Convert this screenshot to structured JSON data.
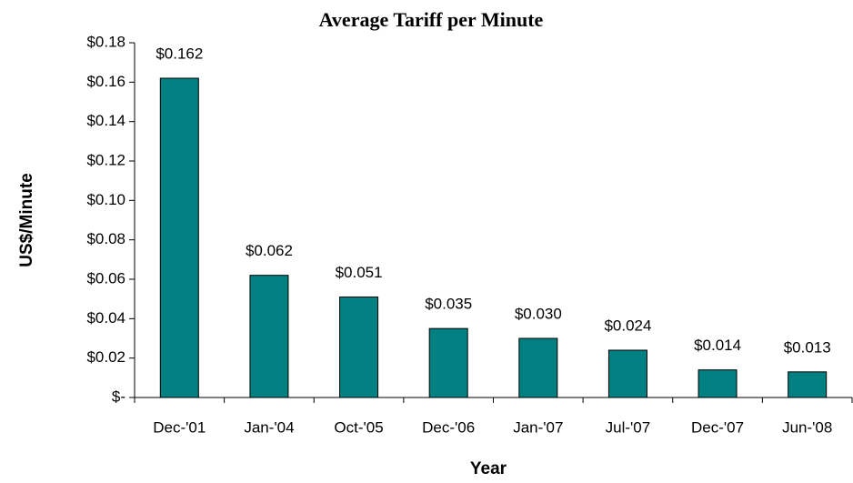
{
  "chart_data": {
    "type": "bar",
    "title": "Average Tariff per Minute",
    "x_label": "Year",
    "y_label": "US$/Minute",
    "categories": [
      "Dec-'01",
      "Jan-'04",
      "Oct-'05",
      "Dec-'06",
      "Jan-'07",
      "Jul-'07",
      "Dec-'07",
      "Jun-'08"
    ],
    "values": [
      0.162,
      0.062,
      0.051,
      0.035,
      0.03,
      0.024,
      0.014,
      0.013
    ],
    "value_labels": [
      "$0.162",
      "$0.062",
      "$0.051",
      "$0.035",
      "$0.030",
      "$0.024",
      "$0.014",
      "$0.013"
    ],
    "color": "#008080",
    "ylim": [
      0,
      0.18
    ],
    "yticks": [
      {
        "value": 0,
        "label": "$-"
      },
      {
        "value": 0.02,
        "label": "$0.02"
      },
      {
        "value": 0.04,
        "label": "$0.04"
      },
      {
        "value": 0.06,
        "label": "$0.06"
      },
      {
        "value": 0.08,
        "label": "$0.08"
      },
      {
        "value": 0.1,
        "label": "$0.10"
      },
      {
        "value": 0.12,
        "label": "$0.12"
      },
      {
        "value": 0.14,
        "label": "$0.14"
      },
      {
        "value": 0.16,
        "label": "$0.16"
      },
      {
        "value": 0.18,
        "label": "$0.18"
      }
    ],
    "grid": false
  }
}
